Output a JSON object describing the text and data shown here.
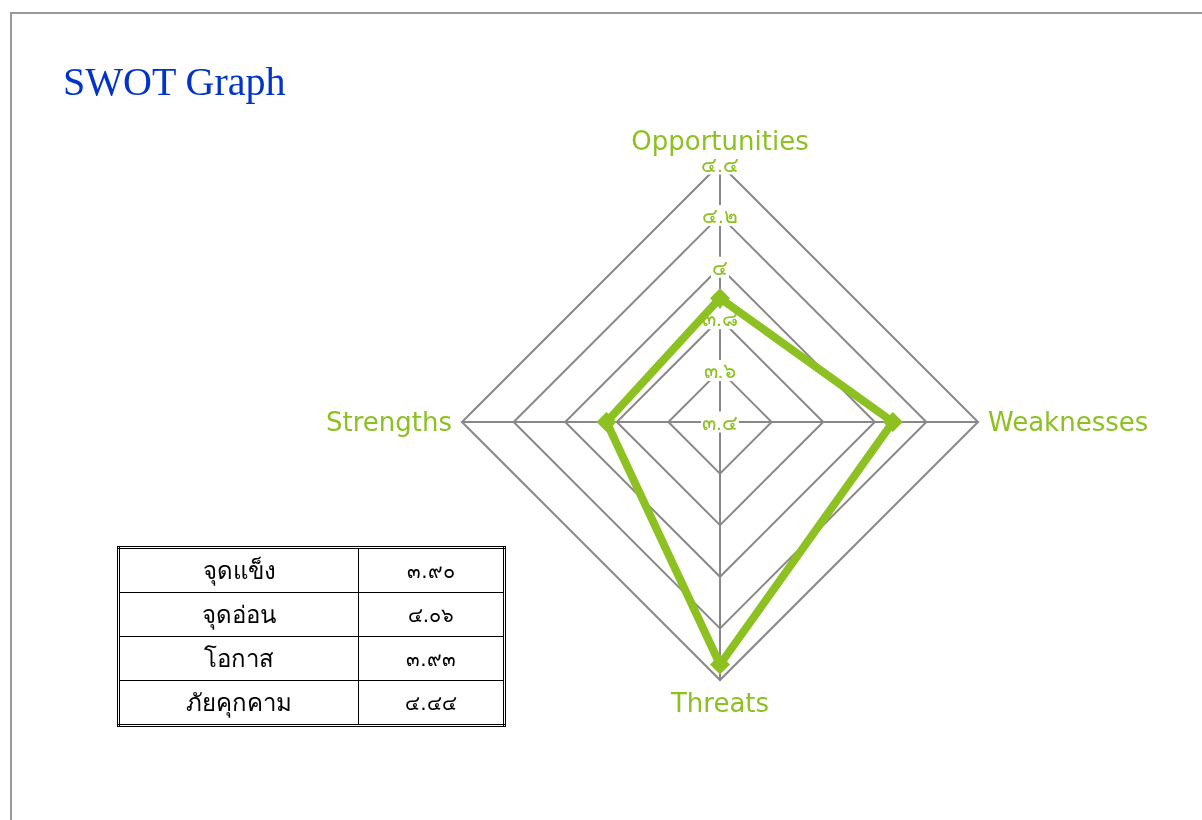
{
  "chart_data": {
    "type": "radar",
    "title": "SWOT Graph",
    "categories": [
      "Opportunities",
      "Weaknesses",
      "Threats",
      "Strengths"
    ],
    "series": [
      {
        "color": "#8dc021",
        "values": [
          3.88,
          4.07,
          4.34,
          3.84
        ]
      }
    ],
    "ylim": [
      3.4,
      4.4
    ],
    "yticks": [
      {
        "value": 3.4,
        "label": "๓.๔"
      },
      {
        "value": 3.6,
        "label": "๓.๖"
      },
      {
        "value": 3.8,
        "label": "๓.๘"
      },
      {
        "value": 4,
        "label": "๔"
      },
      {
        "value": 4.2,
        "label": "๔.๒"
      },
      {
        "value": 4.4,
        "label": "๔.๔"
      }
    ],
    "marker": "diamond",
    "line_style": "solid",
    "annotations": [
      "จุดแข็ง",
      "๓.๙๐",
      "จุดอ่อน",
      "๔.๐๖",
      "โอกาส",
      "๓.๙๓",
      "ภัยคุกคาม",
      "๔.๔๔"
    ]
  }
}
